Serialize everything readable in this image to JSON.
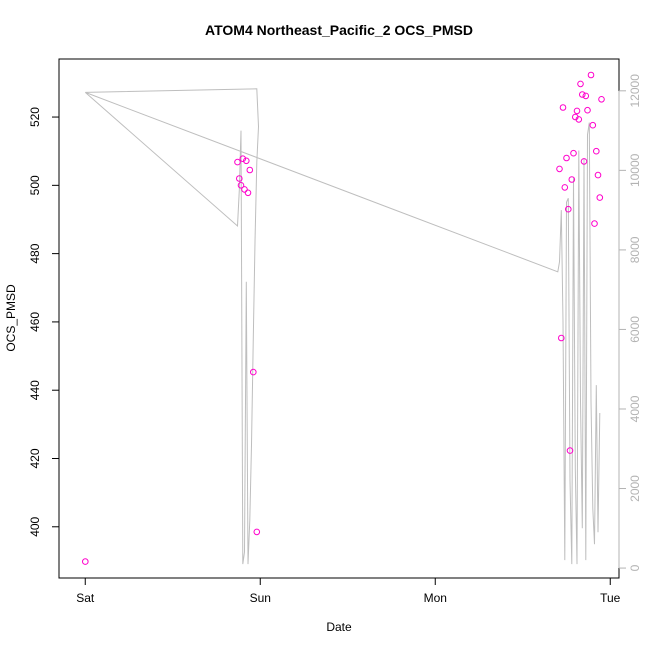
{
  "chart_data": {
    "type": "scatter",
    "title": "ATOM4 Northeast_Pacific_2 OCS_PMSD",
    "xlabel": "Date",
    "ylabel": "OCS_PMSD",
    "x_ticks": [
      "Sat",
      "Sun",
      "Mon",
      "Tue"
    ],
    "x_tick_values": [
      0,
      1,
      2,
      3
    ],
    "xlim": [
      -0.15,
      3.05
    ],
    "y_ticks": [
      400,
      420,
      440,
      460,
      480,
      500,
      520
    ],
    "ylim": [
      385,
      537
    ],
    "y2_ticks": [
      0,
      2000,
      4000,
      6000,
      8000,
      10000,
      12000
    ],
    "y2lim": [
      -250,
      12800
    ],
    "colors": {
      "points": "#ff00cc",
      "line": "#bebebe",
      "right_axis": "#b3b3b3",
      "box": "#000000"
    },
    "series": [
      {
        "kind": "points",
        "points": [
          [
            0.0,
            389.8
          ],
          [
            0.87,
            506.8
          ],
          [
            0.88,
            502.0
          ],
          [
            0.89,
            500.0
          ],
          [
            0.9,
            507.8
          ],
          [
            0.91,
            498.8
          ],
          [
            0.92,
            507.2
          ],
          [
            0.93,
            497.8
          ],
          [
            0.94,
            504.5
          ],
          [
            0.96,
            445.3
          ],
          [
            0.98,
            398.5
          ],
          [
            2.71,
            504.8
          ],
          [
            2.72,
            455.3
          ],
          [
            2.73,
            522.8
          ],
          [
            2.74,
            499.4
          ],
          [
            2.75,
            508.0
          ],
          [
            2.76,
            493.0
          ],
          [
            2.77,
            422.3
          ],
          [
            2.78,
            501.7
          ],
          [
            2.79,
            509.4
          ],
          [
            2.8,
            520.0
          ],
          [
            2.81,
            521.8
          ],
          [
            2.82,
            519.3
          ],
          [
            2.83,
            529.7
          ],
          [
            2.84,
            526.6
          ],
          [
            2.85,
            507.0
          ],
          [
            2.86,
            526.2
          ],
          [
            2.87,
            522.0
          ],
          [
            2.89,
            532.3
          ],
          [
            2.9,
            517.6
          ],
          [
            2.91,
            488.8
          ],
          [
            2.92,
            510.0
          ],
          [
            2.93,
            503.0
          ],
          [
            2.94,
            496.4
          ],
          [
            2.95,
            525.2
          ]
        ]
      },
      {
        "kind": "line",
        "points": [
          [
            0.0,
            11960
          ],
          [
            0.98,
            12050
          ],
          [
            0.99,
            11100
          ],
          [
            0.98,
            10200
          ],
          [
            0.97,
            8200
          ],
          [
            0.96,
            5800
          ],
          [
            0.95,
            3100
          ],
          [
            0.94,
            1200
          ],
          [
            0.93,
            100
          ],
          [
            0.92,
            7200
          ],
          [
            0.91,
            400
          ],
          [
            0.9,
            100
          ],
          [
            0.89,
            11000
          ],
          [
            0.88,
            9500
          ],
          [
            0.87,
            8600
          ],
          [
            0.0,
            11960
          ],
          [
            2.7,
            7450
          ],
          [
            2.71,
            7700
          ],
          [
            2.72,
            9000
          ],
          [
            2.73,
            6200
          ],
          [
            2.74,
            200
          ],
          [
            2.75,
            9200
          ],
          [
            2.76,
            9300
          ],
          [
            2.77,
            2200
          ],
          [
            2.78,
            100
          ],
          [
            2.79,
            9800
          ],
          [
            2.8,
            2500
          ],
          [
            2.81,
            100
          ],
          [
            2.82,
            10500
          ],
          [
            2.83,
            4200
          ],
          [
            2.84,
            1000
          ],
          [
            2.85,
            10300
          ],
          [
            2.86,
            200
          ],
          [
            2.87,
            10900
          ],
          [
            2.88,
            11200
          ],
          [
            2.89,
            4200
          ],
          [
            2.9,
            1500
          ],
          [
            2.91,
            600
          ],
          [
            2.92,
            4600
          ],
          [
            2.93,
            900
          ],
          [
            2.94,
            3900
          ]
        ]
      }
    ]
  }
}
